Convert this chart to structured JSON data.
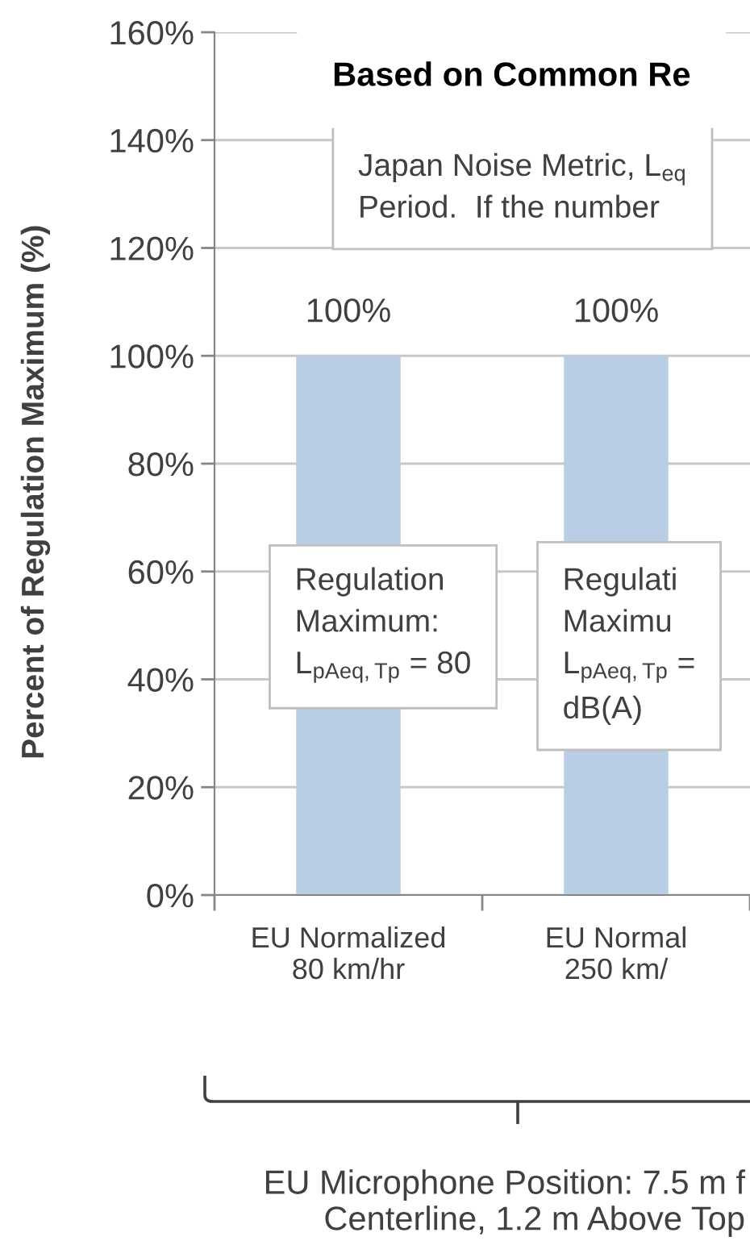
{
  "chart_data": {
    "type": "bar",
    "title": "Based on Common Re",
    "ylabel": "Percent of Regulation Maximum (%)",
    "categories": [
      "EU Normalized\n80 km/hr",
      "EU Normal\n250 km/"
    ],
    "values": [
      100,
      100
    ],
    "color": "#b9cde5",
    "value_labels": [
      "100%",
      "100%"
    ],
    "ylim": [
      0,
      160
    ],
    "yticks": [
      {
        "value": 0,
        "label": "0%"
      },
      {
        "value": 20,
        "label": "20%"
      },
      {
        "value": 40,
        "label": "40%"
      },
      {
        "value": 60,
        "label": "60%"
      },
      {
        "value": 80,
        "label": "80%"
      },
      {
        "value": 100,
        "label": "100%"
      },
      {
        "value": 120,
        "label": "120%"
      },
      {
        "value": 140,
        "label": "140%"
      },
      {
        "value": 160,
        "label": "160%"
      }
    ],
    "grid": "y",
    "annotations": [
      "Japan Noise Metric, L$_{eq}$\nPeriod.  If the number",
      "Regulation\nMaximum:\nL$_{pAeq,Tp}$ = 80",
      "Regulati\nMaximu\nL$_{pAeq,Tp}$ =\ndB(A)",
      "EU Microphone Position: 7.5 m f\nCenterline, 1.2 m Above Top"
    ]
  }
}
